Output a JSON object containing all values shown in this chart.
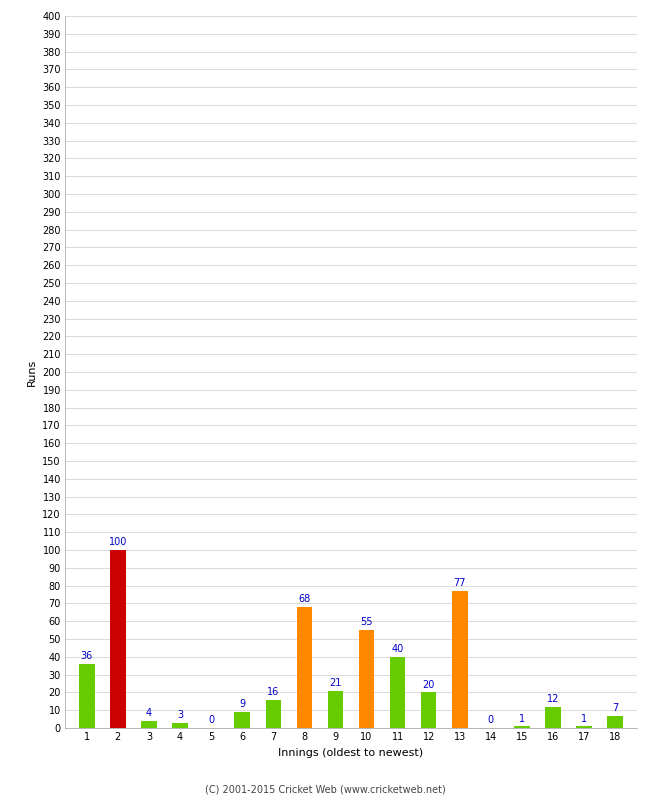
{
  "innings": [
    1,
    2,
    3,
    4,
    5,
    6,
    7,
    8,
    9,
    10,
    11,
    12,
    13,
    14,
    15,
    16,
    17,
    18
  ],
  "values": [
    36,
    100,
    4,
    3,
    0,
    9,
    16,
    68,
    21,
    55,
    40,
    20,
    77,
    0,
    1,
    12,
    1,
    7
  ],
  "colors": [
    "#66cc00",
    "#cc0000",
    "#66cc00",
    "#66cc00",
    "#66cc00",
    "#66cc00",
    "#66cc00",
    "#ff8800",
    "#66cc00",
    "#ff8800",
    "#66cc00",
    "#66cc00",
    "#ff8800",
    "#66cc00",
    "#66cc00",
    "#66cc00",
    "#66cc00",
    "#66cc00"
  ],
  "xlabel": "Innings (oldest to newest)",
  "ylabel": "Runs",
  "ylim": [
    0,
    400
  ],
  "yticks": [
    0,
    10,
    20,
    30,
    40,
    50,
    60,
    70,
    80,
    90,
    100,
    110,
    120,
    130,
    140,
    150,
    160,
    170,
    180,
    190,
    200,
    210,
    220,
    230,
    240,
    250,
    260,
    270,
    280,
    290,
    300,
    310,
    320,
    330,
    340,
    350,
    360,
    370,
    380,
    390,
    400
  ],
  "footer": "(C) 2001-2015 Cricket Web (www.cricketweb.net)",
  "background_color": "#ffffff",
  "grid_color": "#cccccc",
  "label_color": "#0000cc",
  "bar_width": 0.5,
  "tick_fontsize": 7,
  "xlabel_fontsize": 8,
  "ylabel_fontsize": 8,
  "footer_fontsize": 7,
  "label_fontsize": 7
}
